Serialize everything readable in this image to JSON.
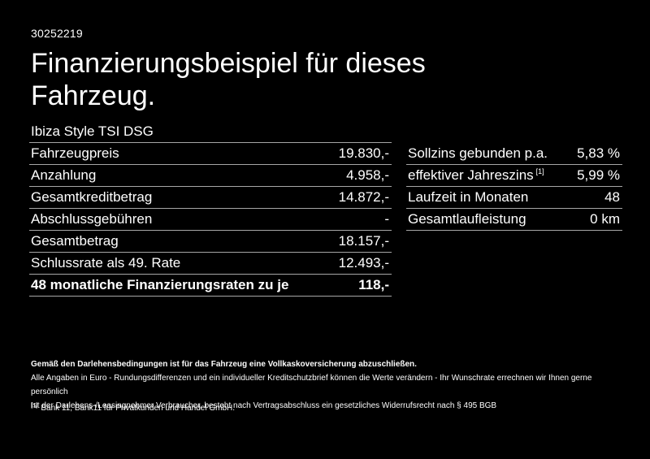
{
  "meta": {
    "vehicle_id": "30252219"
  },
  "header": {
    "title_line1": "Finanzierungsbeispiel für dieses",
    "title_line2": "Fahrzeug.",
    "model": "Ibiza Style TSI DSG"
  },
  "finance_table": {
    "rows": [
      {
        "label": "Fahrzeugpreis",
        "value": "19.830,-"
      },
      {
        "label": "Anzahlung",
        "value": "4.958,-"
      },
      {
        "label": "Gesamtkreditbetrag",
        "value": "14.872,-"
      },
      {
        "label": "Abschlussgebühren",
        "value": "-"
      },
      {
        "label": "Gesamtbetrag",
        "value": "18.157,-"
      },
      {
        "label": "Schlussrate als 49. Rate",
        "value": "12.493,-"
      },
      {
        "label": "48 monatliche Finanzierungsraten zu je",
        "value": "118,-"
      }
    ]
  },
  "conditions_table": {
    "rows": [
      {
        "label": "Sollzins gebunden p.a.",
        "value": "5,83 %"
      },
      {
        "label": "effektiver Jahreszins",
        "sup": "[1]",
        "value": "5,99 %"
      },
      {
        "label": "Laufzeit in Monaten",
        "value": "48"
      },
      {
        "label": "Gesamtlaufleistung",
        "value": "0 km"
      }
    ]
  },
  "footer": {
    "bold_note": "Gemäß den Darlehensbedingungen ist für das Fahrzeug eine Vollkaskoversicherung abzuschließen.",
    "note_line2": "Alle Angaben in Euro - Rundungsdifferenzen und ein individueller Kreditschutzbrief können die Werte verändern - Ihr Wunschrate errechnen wir Ihnen gerne persönlich",
    "note_line3": "Ist der Darlehens-/Leasingnehmer Verbraucher, besteht nach Vertragsabschluss ein gesetzliches Widerrufsrecht nach § 495 BGB",
    "footnote_marker": "[1]",
    "footnote": "Bank 11, Bank11 für Privatkunden und Handel GmbH."
  },
  "colors": {
    "background": "#000000",
    "text": "#ffffff",
    "divider": "#a6a6a6"
  }
}
